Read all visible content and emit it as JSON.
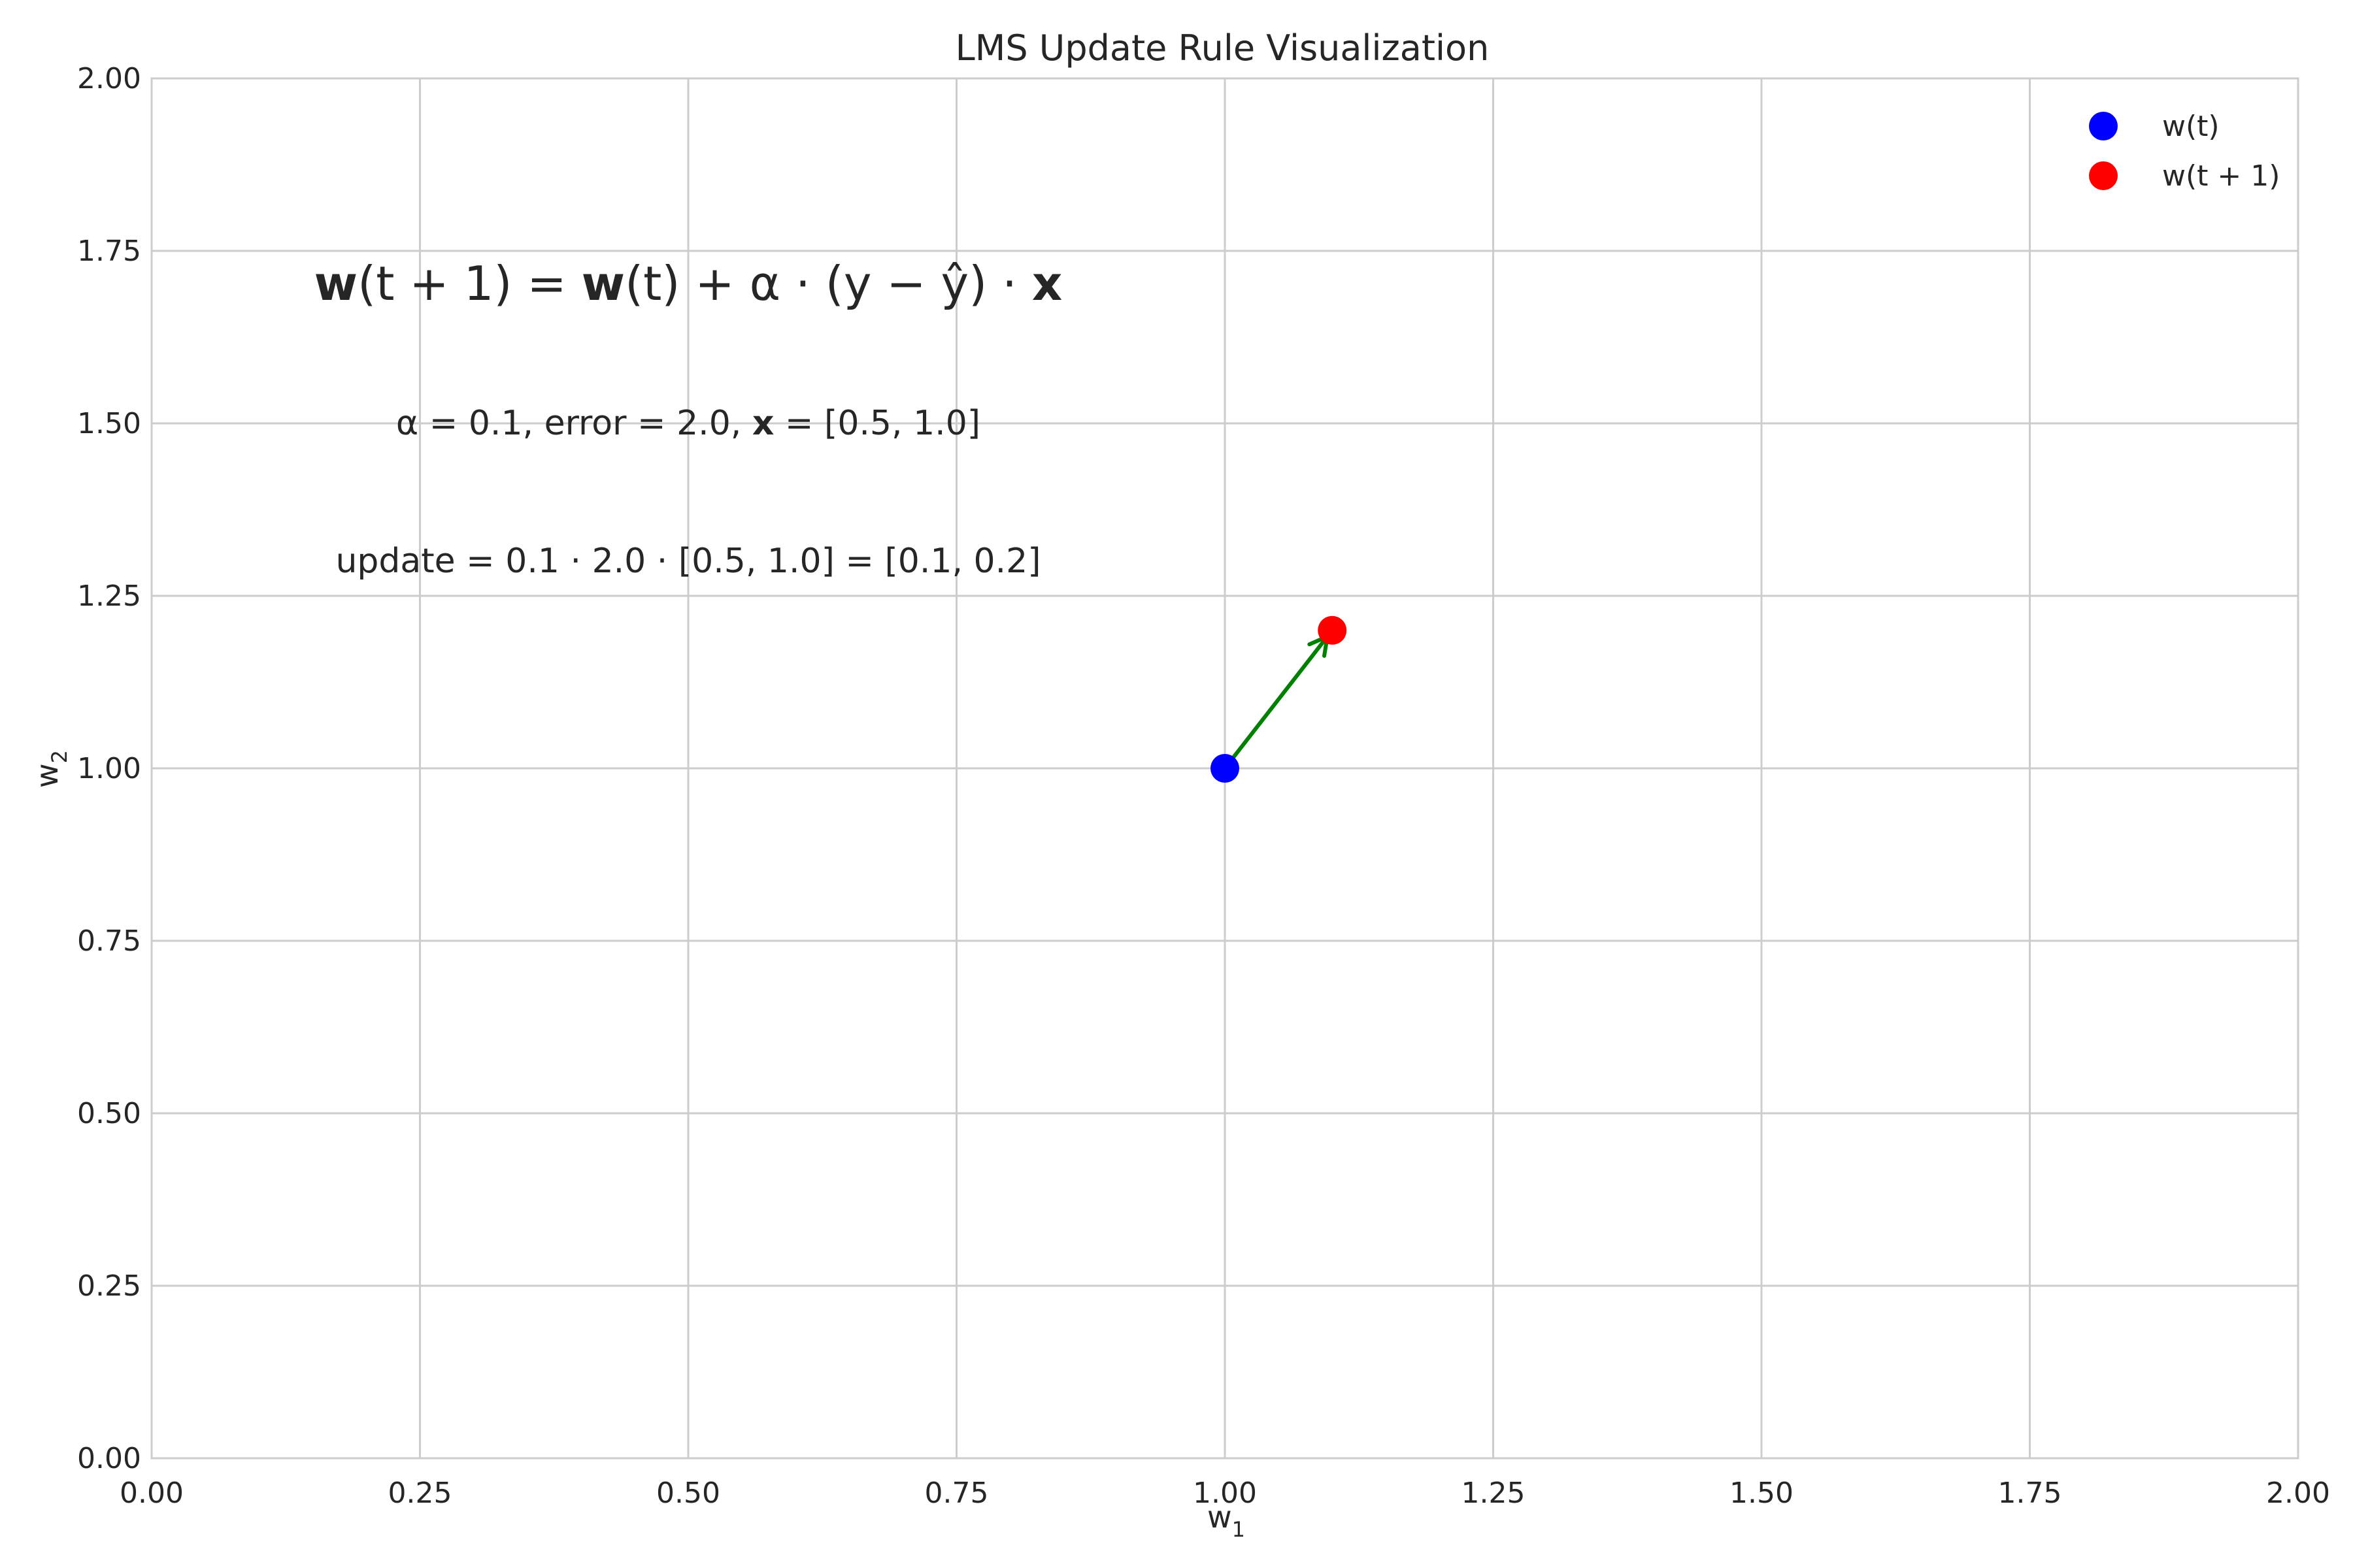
{
  "chart_data": {
    "type": "scatter",
    "title": "LMS Update Rule Visualization",
    "xlabel": {
      "base": "w",
      "sub": "1"
    },
    "ylabel": {
      "base": "w",
      "sub": "2"
    },
    "xlim": [
      0,
      2
    ],
    "ylim": [
      0,
      2
    ],
    "xticks": [
      0,
      0.25,
      0.5,
      0.75,
      1.0,
      1.25,
      1.5,
      1.75,
      2.0
    ],
    "yticks": [
      0,
      0.25,
      0.5,
      0.75,
      1.0,
      1.25,
      1.5,
      1.75,
      2.0
    ],
    "xtick_labels": [
      "0.00",
      "0.25",
      "0.50",
      "0.75",
      "1.00",
      "1.25",
      "1.50",
      "1.75",
      "2.00"
    ],
    "ytick_labels": [
      "0.00",
      "0.25",
      "0.50",
      "0.75",
      "1.00",
      "1.25",
      "1.50",
      "1.75",
      "2.00"
    ],
    "grid": true,
    "legend_position": "top-right",
    "series": [
      {
        "name": "w(t)",
        "color": "#0000ff",
        "points": [
          {
            "x": 1.0,
            "y": 1.0
          }
        ]
      },
      {
        "name": "w(t + 1)",
        "color": "#ff0000",
        "points": [
          {
            "x": 1.1,
            "y": 1.2
          }
        ]
      }
    ],
    "arrow": {
      "from": [
        1.0,
        1.0
      ],
      "to": [
        1.1,
        1.2
      ],
      "color": "#008000"
    },
    "annotations": [
      {
        "x": 0.5,
        "y": 1.7,
        "size": "large",
        "parts": [
          {
            "t": "w",
            "bold": true
          },
          {
            "t": "(t + 1) = "
          },
          {
            "t": "w",
            "bold": true
          },
          {
            "t": "(t) + α · (y − ŷ) · "
          },
          {
            "t": "x",
            "bold": true
          }
        ]
      },
      {
        "x": 0.5,
        "y": 1.5,
        "size": "medium",
        "parts": [
          {
            "t": "α = 0.1, error = 2.0, "
          },
          {
            "t": "x",
            "bold": true
          },
          {
            "t": " = [0.5, 1.0]"
          }
        ]
      },
      {
        "x": 0.5,
        "y": 1.3,
        "size": "medium",
        "parts": [
          {
            "t": "update = 0.1 · 2.0 · [0.5, 1.0] = [0.1, 0.2]"
          }
        ]
      }
    ]
  }
}
